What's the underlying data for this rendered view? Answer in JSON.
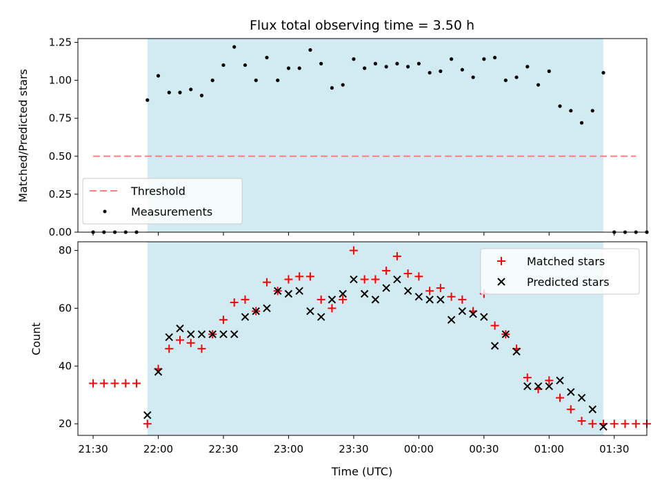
{
  "figure": {
    "title": "Flux total observing time = 3.50 h"
  },
  "chart_data": [
    {
      "type": "scatter",
      "title": "Flux total observing time = 3.50 h",
      "xlabel": "",
      "ylabel": "Matched/Predicted stars",
      "xlim": [
        "21:23",
        "01:45"
      ],
      "ylim": [
        0,
        1.275
      ],
      "yticks": [
        0.0,
        0.25,
        0.5,
        0.75,
        1.0,
        1.25
      ],
      "ytick_labels": [
        "0.00",
        "0.25",
        "0.50",
        "0.75",
        "1.00",
        "1.25"
      ],
      "shaded_region": {
        "start": "21:55",
        "end": "01:25",
        "color": "#add8e6"
      },
      "threshold": {
        "name": "Threshold",
        "value": 0.5,
        "x_start": "21:30",
        "x_end": "01:40",
        "color": "#ff7f7f",
        "dashed": true
      },
      "legend_position": "lower-left",
      "series": [
        {
          "name": "Measurements",
          "marker": "dot",
          "color": "#000000",
          "points": [
            [
              "21:30",
              0.0
            ],
            [
              "21:35",
              0.0
            ],
            [
              "21:40",
              0.0
            ],
            [
              "21:45",
              0.0
            ],
            [
              "21:50",
              0.0
            ],
            [
              "21:55",
              0.87
            ],
            [
              "22:00",
              1.03
            ],
            [
              "22:05",
              0.92
            ],
            [
              "22:10",
              0.92
            ],
            [
              "22:15",
              0.94
            ],
            [
              "22:20",
              0.9
            ],
            [
              "22:25",
              1.0
            ],
            [
              "22:30",
              1.1
            ],
            [
              "22:35",
              1.22
            ],
            [
              "22:40",
              1.1
            ],
            [
              "22:45",
              1.0
            ],
            [
              "22:50",
              1.15
            ],
            [
              "22:55",
              1.0
            ],
            [
              "23:00",
              1.08
            ],
            [
              "23:05",
              1.08
            ],
            [
              "23:10",
              1.2
            ],
            [
              "23:15",
              1.11
            ],
            [
              "23:20",
              0.95
            ],
            [
              "23:25",
              0.97
            ],
            [
              "23:30",
              1.14
            ],
            [
              "23:35",
              1.08
            ],
            [
              "23:40",
              1.11
            ],
            [
              "23:45",
              1.09
            ],
            [
              "23:50",
              1.11
            ],
            [
              "23:55",
              1.09
            ],
            [
              "00:00",
              1.11
            ],
            [
              "00:05",
              1.05
            ],
            [
              "00:10",
              1.06
            ],
            [
              "00:15",
              1.14
            ],
            [
              "00:20",
              1.07
            ],
            [
              "00:25",
              1.02
            ],
            [
              "00:30",
              1.14
            ],
            [
              "00:35",
              1.15
            ],
            [
              "00:40",
              1.0
            ],
            [
              "00:45",
              1.02
            ],
            [
              "00:50",
              1.09
            ],
            [
              "00:55",
              0.97
            ],
            [
              "01:00",
              1.06
            ],
            [
              "01:05",
              0.83
            ],
            [
              "01:10",
              0.8
            ],
            [
              "01:15",
              0.72
            ],
            [
              "01:20",
              0.8
            ],
            [
              "01:25",
              1.05
            ],
            [
              "01:30",
              0.0
            ],
            [
              "01:35",
              0.0
            ],
            [
              "01:40",
              0.0
            ],
            [
              "01:45",
              0.0
            ]
          ]
        }
      ],
      "legend": [
        "Threshold",
        "Measurements"
      ]
    },
    {
      "type": "scatter",
      "title": "",
      "xlabel": "Time (UTC)",
      "ylabel": "Count",
      "xlim": [
        "21:23",
        "01:45"
      ],
      "ylim": [
        16,
        83
      ],
      "yticks": [
        20,
        40,
        60,
        80
      ],
      "ytick_labels": [
        "20",
        "40",
        "60",
        "80"
      ],
      "xticks": [
        "21:30",
        "22:00",
        "22:30",
        "23:00",
        "23:30",
        "00:00",
        "00:30",
        "01:00",
        "01:30"
      ],
      "shaded_region": {
        "start": "21:55",
        "end": "01:25",
        "color": "#add8e6"
      },
      "legend_position": "upper-right",
      "series": [
        {
          "name": "Matched stars",
          "marker": "plus",
          "color": "#ff0000",
          "points": [
            [
              "21:30",
              34
            ],
            [
              "21:35",
              34
            ],
            [
              "21:40",
              34
            ],
            [
              "21:45",
              34
            ],
            [
              "21:50",
              34
            ],
            [
              "21:55",
              20
            ],
            [
              "22:00",
              39
            ],
            [
              "22:05",
              46
            ],
            [
              "22:10",
              49
            ],
            [
              "22:15",
              48
            ],
            [
              "22:20",
              46
            ],
            [
              "22:25",
              51
            ],
            [
              "22:30",
              56
            ],
            [
              "22:35",
              62
            ],
            [
              "22:40",
              63
            ],
            [
              "22:45",
              59
            ],
            [
              "22:50",
              69
            ],
            [
              "22:55",
              66
            ],
            [
              "23:00",
              70
            ],
            [
              "23:05",
              71
            ],
            [
              "23:10",
              71
            ],
            [
              "23:15",
              63
            ],
            [
              "23:20",
              60
            ],
            [
              "23:25",
              63
            ],
            [
              "23:30",
              80
            ],
            [
              "23:35",
              70
            ],
            [
              "23:40",
              70
            ],
            [
              "23:45",
              73
            ],
            [
              "23:50",
              78
            ],
            [
              "23:55",
              72
            ],
            [
              "00:00",
              71
            ],
            [
              "00:05",
              66
            ],
            [
              "00:10",
              67
            ],
            [
              "00:15",
              64
            ],
            [
              "00:20",
              63
            ],
            [
              "00:25",
              59
            ],
            [
              "00:30",
              65
            ],
            [
              "00:35",
              54
            ],
            [
              "00:40",
              51
            ],
            [
              "00:45",
              46
            ],
            [
              "00:50",
              36
            ],
            [
              "00:55",
              32
            ],
            [
              "01:00",
              35
            ],
            [
              "01:05",
              29
            ],
            [
              "01:10",
              25
            ],
            [
              "01:15",
              21
            ],
            [
              "01:20",
              20
            ],
            [
              "01:25",
              20
            ],
            [
              "01:30",
              20
            ],
            [
              "01:35",
              20
            ],
            [
              "01:40",
              20
            ],
            [
              "01:45",
              20
            ]
          ]
        },
        {
          "name": "Predicted stars",
          "marker": "x",
          "color": "#000000",
          "points": [
            [
              "21:55",
              23
            ],
            [
              "22:00",
              38
            ],
            [
              "22:05",
              50
            ],
            [
              "22:10",
              53
            ],
            [
              "22:15",
              51
            ],
            [
              "22:20",
              51
            ],
            [
              "22:25",
              51
            ],
            [
              "22:30",
              51
            ],
            [
              "22:35",
              51
            ],
            [
              "22:40",
              57
            ],
            [
              "22:45",
              59
            ],
            [
              "22:50",
              60
            ],
            [
              "22:55",
              66
            ],
            [
              "23:00",
              65
            ],
            [
              "23:05",
              66
            ],
            [
              "23:10",
              59
            ],
            [
              "23:15",
              57
            ],
            [
              "23:20",
              63
            ],
            [
              "23:25",
              65
            ],
            [
              "23:30",
              70
            ],
            [
              "23:35",
              65
            ],
            [
              "23:40",
              63
            ],
            [
              "23:45",
              67
            ],
            [
              "23:50",
              70
            ],
            [
              "23:55",
              66
            ],
            [
              "00:00",
              64
            ],
            [
              "00:05",
              63
            ],
            [
              "00:10",
              63
            ],
            [
              "00:15",
              56
            ],
            [
              "00:20",
              59
            ],
            [
              "00:25",
              58
            ],
            [
              "00:30",
              57
            ],
            [
              "00:35",
              47
            ],
            [
              "00:40",
              51
            ],
            [
              "00:45",
              45
            ],
            [
              "00:50",
              33
            ],
            [
              "00:55",
              33
            ],
            [
              "01:00",
              33
            ],
            [
              "01:05",
              35
            ],
            [
              "01:10",
              31
            ],
            [
              "01:15",
              29
            ],
            [
              "01:20",
              25
            ],
            [
              "01:25",
              19
            ]
          ]
        }
      ],
      "legend": [
        "Matched stars",
        "Predicted stars"
      ]
    }
  ]
}
